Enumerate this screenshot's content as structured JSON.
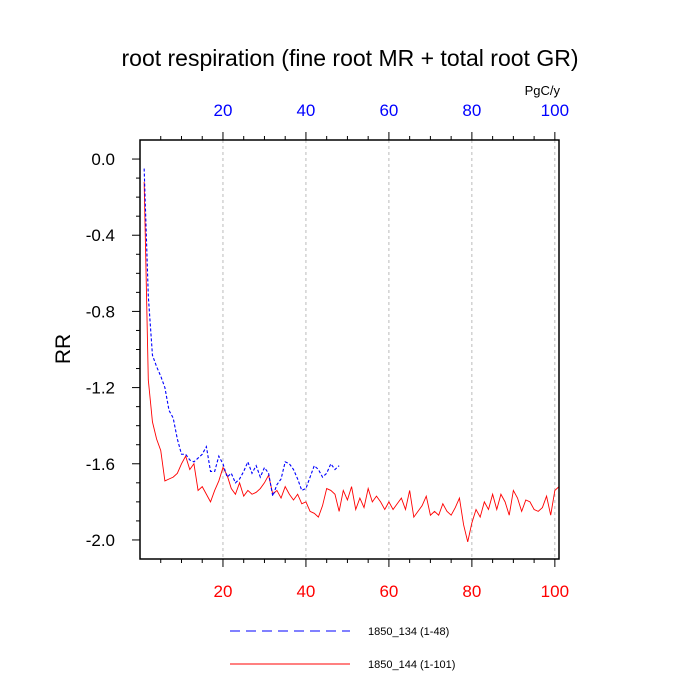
{
  "chart_data": {
    "type": "line",
    "title": "root respiration (fine root MR + total root GR)",
    "ylabel": "RR",
    "top_axis_unit": "PgC/y",
    "xlim": [
      0,
      101
    ],
    "ylim": [
      -2.1,
      0.1
    ],
    "x_ticks": [
      20,
      40,
      60,
      80,
      100
    ],
    "x_tick_labels": [
      "20",
      "40",
      "60",
      "80",
      "100"
    ],
    "y_ticks": [
      0.0,
      -0.4,
      -0.8,
      -1.2,
      -1.6,
      -2.0
    ],
    "y_tick_labels": [
      "0.0",
      "-0.4",
      "-0.8",
      "-1.2",
      "-1.6",
      "-2.0"
    ],
    "grid": "vertical dashed lines at x ticks",
    "legend_position": "bottom",
    "colors": {
      "blue": "#0000ff",
      "red": "#ff0000",
      "grid": "#aaaaaa"
    },
    "series": [
      {
        "name": "1850_134 (1-48)",
        "color": "#0000ff",
        "dash": "dashed",
        "x": [
          1,
          2,
          3,
          4,
          5,
          6,
          7,
          8,
          9,
          10,
          11,
          12,
          13,
          14,
          15,
          16,
          17,
          18,
          19,
          20,
          21,
          22,
          23,
          24,
          25,
          26,
          27,
          28,
          29,
          30,
          31,
          32,
          33,
          34,
          35,
          36,
          37,
          38,
          39,
          40,
          41,
          42,
          43,
          44,
          45,
          46,
          47,
          48
        ],
        "y": [
          -0.05,
          -0.72,
          -1.03,
          -1.09,
          -1.14,
          -1.2,
          -1.32,
          -1.36,
          -1.47,
          -1.55,
          -1.55,
          -1.58,
          -1.59,
          -1.57,
          -1.55,
          -1.51,
          -1.64,
          -1.64,
          -1.56,
          -1.6,
          -1.67,
          -1.65,
          -1.7,
          -1.68,
          -1.64,
          -1.59,
          -1.65,
          -1.61,
          -1.67,
          -1.62,
          -1.65,
          -1.77,
          -1.71,
          -1.68,
          -1.59,
          -1.6,
          -1.63,
          -1.68,
          -1.74,
          -1.73,
          -1.67,
          -1.61,
          -1.63,
          -1.67,
          -1.65,
          -1.6,
          -1.63,
          -1.61
        ]
      },
      {
        "name": "1850_144 (1-101)",
        "color": "#ff0000",
        "dash": "solid",
        "x": [
          1,
          2,
          3,
          4,
          5,
          6,
          7,
          8,
          9,
          10,
          11,
          12,
          13,
          14,
          15,
          16,
          17,
          18,
          19,
          20,
          21,
          22,
          23,
          24,
          25,
          26,
          27,
          28,
          29,
          30,
          31,
          32,
          33,
          34,
          35,
          36,
          37,
          38,
          39,
          40,
          41,
          42,
          43,
          44,
          45,
          46,
          47,
          48,
          49,
          50,
          51,
          52,
          53,
          54,
          55,
          56,
          57,
          58,
          59,
          60,
          61,
          62,
          63,
          64,
          65,
          66,
          67,
          68,
          69,
          70,
          71,
          72,
          73,
          74,
          75,
          76,
          77,
          78,
          79,
          80,
          81,
          82,
          83,
          84,
          85,
          86,
          87,
          88,
          89,
          90,
          91,
          92,
          93,
          94,
          95,
          96,
          97,
          98,
          99,
          100,
          101
        ],
        "y": [
          -0.12,
          -1.16,
          -1.38,
          -1.47,
          -1.53,
          -1.69,
          -1.68,
          -1.67,
          -1.65,
          -1.6,
          -1.56,
          -1.63,
          -1.6,
          -1.74,
          -1.72,
          -1.76,
          -1.8,
          -1.74,
          -1.69,
          -1.62,
          -1.66,
          -1.73,
          -1.76,
          -1.7,
          -1.77,
          -1.74,
          -1.76,
          -1.75,
          -1.73,
          -1.7,
          -1.66,
          -1.76,
          -1.74,
          -1.78,
          -1.72,
          -1.76,
          -1.79,
          -1.76,
          -1.81,
          -1.8,
          -1.85,
          -1.86,
          -1.88,
          -1.82,
          -1.73,
          -1.74,
          -1.76,
          -1.85,
          -1.74,
          -1.79,
          -1.72,
          -1.84,
          -1.78,
          -1.83,
          -1.73,
          -1.8,
          -1.77,
          -1.8,
          -1.84,
          -1.8,
          -1.84,
          -1.81,
          -1.78,
          -1.84,
          -1.74,
          -1.88,
          -1.85,
          -1.82,
          -1.77,
          -1.87,
          -1.85,
          -1.87,
          -1.81,
          -1.85,
          -1.87,
          -1.83,
          -1.78,
          -1.92,
          -2.01,
          -1.91,
          -1.84,
          -1.88,
          -1.8,
          -1.84,
          -1.76,
          -1.84,
          -1.76,
          -1.8,
          -1.87,
          -1.74,
          -1.78,
          -1.85,
          -1.79,
          -1.8,
          -1.84,
          -1.85,
          -1.83,
          -1.77,
          -1.87,
          -1.74,
          -1.72
        ]
      }
    ]
  }
}
